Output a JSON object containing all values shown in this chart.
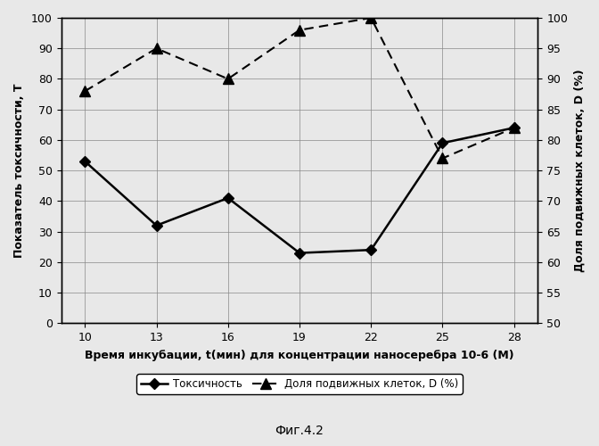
{
  "x": [
    10,
    13,
    16,
    19,
    22,
    25,
    28
  ],
  "toxicity": [
    53,
    32,
    41,
    23,
    24,
    59,
    64
  ],
  "mobility": [
    88,
    95,
    90,
    98,
    100,
    77,
    82
  ],
  "xlabel": "Время инкубации, t(мин) для концентрации наносеребра 10-6 (М)",
  "ylabel_left": "Показатель токсичности, T",
  "ylabel_right": "Доля подвижных клеток, D (%)",
  "ylim_left": [
    0,
    100
  ],
  "ylim_right": [
    50,
    100
  ],
  "yticks_left": [
    0,
    10,
    20,
    30,
    40,
    50,
    60,
    70,
    80,
    90,
    100
  ],
  "yticks_right": [
    50,
    55,
    60,
    65,
    70,
    75,
    80,
    85,
    90,
    95,
    100
  ],
  "xticks": [
    10,
    13,
    16,
    19,
    22,
    25,
    28
  ],
  "legend_toxicity": "Токсичность",
  "legend_mobility": "Доля подвижных клеток, D (%)",
  "caption": "Фиг.4.2",
  "line_color": "#000000",
  "background_color": "#e8e8e8"
}
